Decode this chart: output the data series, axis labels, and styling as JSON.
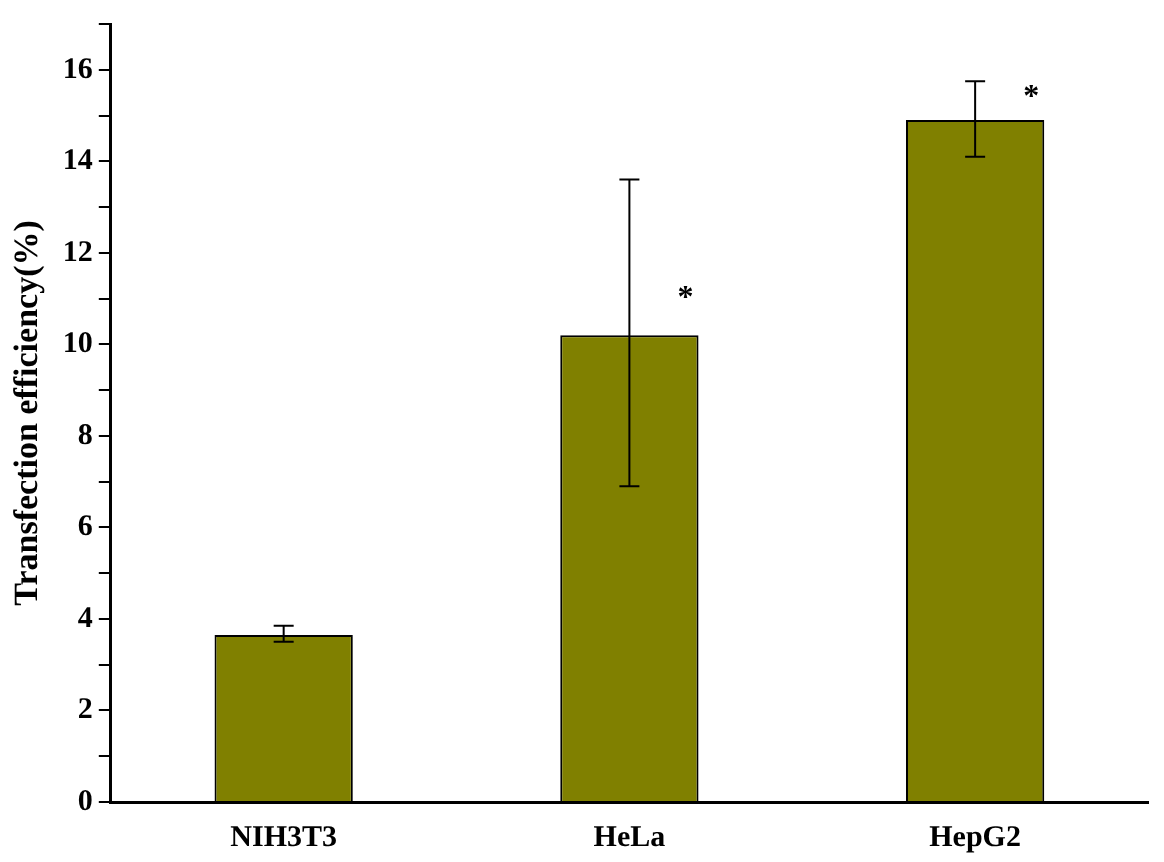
{
  "chart_data": {
    "type": "bar",
    "ylabel": "Transfection efficiency(%)",
    "categories": [
      "NIH3T3",
      "HeLa",
      "HepG2"
    ],
    "values": [
      3.65,
      10.2,
      14.9
    ],
    "errors": [
      [
        3.5,
        3.85
      ],
      [
        6.9,
        13.6
      ],
      [
        14.1,
        15.75
      ]
    ],
    "color": "#808000",
    "ylim": [
      0,
      17
    ],
    "yticks": [
      0,
      {
        "value": 1,
        "label": null
      },
      2,
      {
        "value": 3,
        "label": null
      },
      4,
      {
        "value": 5,
        "label": null
      },
      6,
      {
        "value": 7,
        "label": null
      },
      8,
      {
        "value": 9,
        "label": null
      },
      10,
      {
        "value": 11,
        "label": null
      },
      12,
      {
        "value": 13,
        "label": null
      },
      14,
      {
        "value": 15,
        "label": null
      },
      16,
      {
        "value": 17,
        "label": null
      }
    ],
    "annotations": [
      {
        "text": "*",
        "x": "HeLa",
        "y": 11
      },
      {
        "text": "*",
        "x": "HepG2",
        "y": 15.4
      }
    ],
    "grid": false,
    "legend": false
  }
}
